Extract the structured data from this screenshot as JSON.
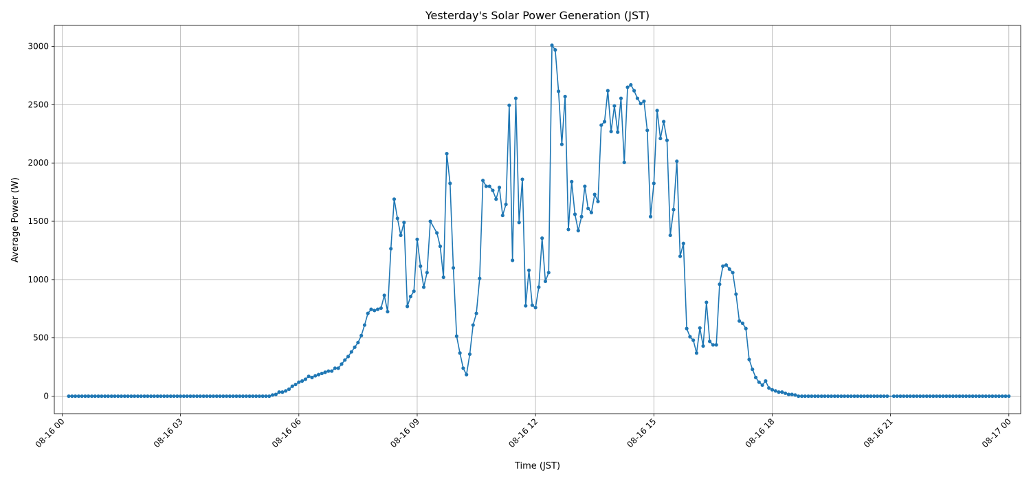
{
  "chart_data": {
    "type": "line",
    "title": "Yesterday's Solar Power Generation (JST)",
    "xlabel": "Time (JST)",
    "ylabel": "Average Power (W)",
    "xlim": [
      "2024-08-15 23:48",
      "2024-08-17 00:18"
    ],
    "ylim": [
      -150,
      3180
    ],
    "grid": true,
    "legend": "none",
    "x_ticks": [
      {
        "x": "2024-08-16 00:00",
        "label": "08-16 00"
      },
      {
        "x": "2024-08-16 03:00",
        "label": "08-16 03"
      },
      {
        "x": "2024-08-16 06:00",
        "label": "08-16 06"
      },
      {
        "x": "2024-08-16 09:00",
        "label": "08-16 09"
      },
      {
        "x": "2024-08-16 12:00",
        "label": "08-16 12"
      },
      {
        "x": "2024-08-16 15:00",
        "label": "08-16 15"
      },
      {
        "x": "2024-08-16 18:00",
        "label": "08-16 18"
      },
      {
        "x": "2024-08-16 21:00",
        "label": "08-16 21"
      },
      {
        "x": "2024-08-17 00:00",
        "label": "08-17 00"
      }
    ],
    "y_ticks": [
      0,
      500,
      1000,
      1500,
      2000,
      2500,
      3000
    ],
    "series": [
      {
        "color": "#1f77b4",
        "points": [
          [
            "00:10",
            0
          ],
          [
            "00:15",
            0
          ],
          [
            "00:20",
            0
          ],
          [
            "00:25",
            0
          ],
          [
            "00:30",
            0
          ],
          [
            "00:35",
            0
          ],
          [
            "00:40",
            0
          ],
          [
            "00:45",
            0
          ],
          [
            "00:50",
            0
          ],
          [
            "00:55",
            0
          ],
          [
            "01:00",
            0
          ],
          [
            "01:05",
            0
          ],
          [
            "01:10",
            0
          ],
          [
            "01:15",
            0
          ],
          [
            "01:20",
            0
          ],
          [
            "01:25",
            0
          ],
          [
            "01:30",
            0
          ],
          [
            "01:35",
            0
          ],
          [
            "01:40",
            0
          ],
          [
            "01:45",
            0
          ],
          [
            "01:50",
            0
          ],
          [
            "01:55",
            0
          ],
          [
            "02:00",
            0
          ],
          [
            "02:05",
            0
          ],
          [
            "02:10",
            0
          ],
          [
            "02:15",
            0
          ],
          [
            "02:20",
            0
          ],
          [
            "02:25",
            0
          ],
          [
            "02:30",
            0
          ],
          [
            "02:35",
            0
          ],
          [
            "02:40",
            0
          ],
          [
            "02:45",
            0
          ],
          [
            "02:50",
            0
          ],
          [
            "02:55",
            0
          ],
          [
            "03:00",
            0
          ],
          [
            "03:05",
            0
          ],
          [
            "03:10",
            0
          ],
          [
            "03:15",
            0
          ],
          [
            "03:20",
            0
          ],
          [
            "03:25",
            0
          ],
          [
            "03:30",
            0
          ],
          [
            "03:35",
            0
          ],
          [
            "03:40",
            0
          ],
          [
            "03:45",
            0
          ],
          [
            "03:50",
            0
          ],
          [
            "03:55",
            0
          ],
          [
            "04:00",
            0
          ],
          [
            "04:05",
            0
          ],
          [
            "04:10",
            0
          ],
          [
            "04:15",
            0
          ],
          [
            "04:20",
            0
          ],
          [
            "04:25",
            0
          ],
          [
            "04:30",
            0
          ],
          [
            "04:35",
            0
          ],
          [
            "04:40",
            0
          ],
          [
            "04:45",
            0
          ],
          [
            "04:50",
            0
          ],
          [
            "04:55",
            0
          ],
          [
            "05:00",
            0
          ],
          [
            "05:05",
            0
          ],
          [
            "05:10",
            0
          ],
          [
            "05:15",
            0
          ],
          [
            "05:20",
            10
          ],
          [
            "05:25",
            15
          ],
          [
            "05:30",
            35
          ],
          [
            "05:35",
            35
          ],
          [
            "05:40",
            45
          ],
          [
            "05:45",
            60
          ],
          [
            "05:50",
            85
          ],
          [
            "05:55",
            100
          ],
          [
            "06:00",
            120
          ],
          [
            "06:05",
            130
          ],
          [
            "06:10",
            145
          ],
          [
            "06:15",
            170
          ],
          [
            "06:20",
            160
          ],
          [
            "06:25",
            175
          ],
          [
            "06:30",
            185
          ],
          [
            "06:35",
            195
          ],
          [
            "06:40",
            205
          ],
          [
            "06:45",
            215
          ],
          [
            "06:50",
            215
          ],
          [
            "06:55",
            240
          ],
          [
            "07:00",
            240
          ],
          [
            "07:05",
            275
          ],
          [
            "07:10",
            310
          ],
          [
            "07:15",
            340
          ],
          [
            "07:20",
            380
          ],
          [
            "07:25",
            420
          ],
          [
            "07:30",
            460
          ],
          [
            "07:35",
            520
          ],
          [
            "07:40",
            610
          ],
          [
            "07:45",
            710
          ],
          [
            "07:50",
            745
          ],
          [
            "07:55",
            735
          ],
          [
            "08:00",
            745
          ],
          [
            "08:05",
            755
          ],
          [
            "08:10",
            865
          ],
          [
            "08:15",
            725
          ],
          [
            "08:20",
            1265
          ],
          [
            "08:25",
            1690
          ],
          [
            "08:30",
            1525
          ],
          [
            "08:35",
            1380
          ],
          [
            "08:40",
            1490
          ],
          [
            "08:45",
            770
          ],
          [
            "08:50",
            855
          ],
          [
            "08:55",
            900
          ],
          [
            "09:00",
            1345
          ],
          [
            "09:05",
            1115
          ],
          [
            "09:10",
            935
          ],
          [
            "09:15",
            1060
          ],
          [
            "09:20",
            1500
          ],
          [
            "09:30",
            1400
          ],
          [
            "09:35",
            1285
          ],
          [
            "09:40",
            1020
          ],
          [
            "09:45",
            2080
          ],
          [
            "09:50",
            1825
          ],
          [
            "09:55",
            1100
          ],
          [
            "10:00",
            515
          ],
          [
            "10:05",
            370
          ],
          [
            "10:10",
            240
          ],
          [
            "10:15",
            185
          ],
          [
            "10:20",
            360
          ],
          [
            "10:25",
            610
          ],
          [
            "10:30",
            710
          ],
          [
            "10:35",
            1010
          ],
          [
            "10:40",
            1850
          ],
          [
            "10:45",
            1800
          ],
          [
            "10:50",
            1800
          ],
          [
            "10:55",
            1765
          ],
          [
            "11:00",
            1690
          ],
          [
            "11:05",
            1790
          ],
          [
            "11:10",
            1550
          ],
          [
            "11:15",
            1645
          ],
          [
            "11:20",
            2495
          ],
          [
            "11:25",
            1165
          ],
          [
            "11:30",
            2555
          ],
          [
            "11:35",
            1490
          ],
          [
            "11:40",
            1860
          ],
          [
            "11:45",
            775
          ],
          [
            "11:50",
            1080
          ],
          [
            "11:55",
            780
          ],
          [
            "12:00",
            760
          ],
          [
            "12:05",
            935
          ],
          [
            "12:10",
            1355
          ],
          [
            "12:15",
            985
          ],
          [
            "12:20",
            1060
          ],
          [
            "12:25",
            3010
          ],
          [
            "12:30",
            2970
          ],
          [
            "12:35",
            2615
          ],
          [
            "12:40",
            2160
          ],
          [
            "12:45",
            2570
          ],
          [
            "12:50",
            1430
          ],
          [
            "12:55",
            1840
          ],
          [
            "13:00",
            1560
          ],
          [
            "13:05",
            1420
          ],
          [
            "13:10",
            1540
          ],
          [
            "13:15",
            1800
          ],
          [
            "13:20",
            1610
          ],
          [
            "13:25",
            1575
          ],
          [
            "13:30",
            1730
          ],
          [
            "13:35",
            1670
          ],
          [
            "13:40",
            2325
          ],
          [
            "13:45",
            2355
          ],
          [
            "13:50",
            2620
          ],
          [
            "13:55",
            2270
          ],
          [
            "14:00",
            2490
          ],
          [
            "14:05",
            2265
          ],
          [
            "14:10",
            2555
          ],
          [
            "14:15",
            2005
          ],
          [
            "14:20",
            2650
          ],
          [
            "14:25",
            2670
          ],
          [
            "14:30",
            2620
          ],
          [
            "14:35",
            2555
          ],
          [
            "14:40",
            2510
          ],
          [
            "14:45",
            2530
          ],
          [
            "14:50",
            2280
          ],
          [
            "14:55",
            1540
          ],
          [
            "15:00",
            1825
          ],
          [
            "15:05",
            2450
          ],
          [
            "15:10",
            2210
          ],
          [
            "15:15",
            2355
          ],
          [
            "15:20",
            2195
          ],
          [
            "15:25",
            1380
          ],
          [
            "15:30",
            1600
          ],
          [
            "15:35",
            2015
          ],
          [
            "15:40",
            1200
          ],
          [
            "15:45",
            1310
          ],
          [
            "15:50",
            580
          ],
          [
            "15:55",
            510
          ],
          [
            "16:00",
            480
          ],
          [
            "16:05",
            370
          ],
          [
            "16:10",
            585
          ],
          [
            "16:15",
            430
          ],
          [
            "16:20",
            805
          ],
          [
            "16:25",
            470
          ],
          [
            "16:30",
            440
          ],
          [
            "16:35",
            440
          ],
          [
            "16:40",
            960
          ],
          [
            "16:45",
            1115
          ],
          [
            "16:50",
            1125
          ],
          [
            "16:55",
            1090
          ],
          [
            "17:00",
            1060
          ],
          [
            "17:05",
            875
          ],
          [
            "17:10",
            645
          ],
          [
            "17:15",
            625
          ],
          [
            "17:20",
            580
          ],
          [
            "17:25",
            315
          ],
          [
            "17:30",
            230
          ],
          [
            "17:35",
            160
          ],
          [
            "17:40",
            120
          ],
          [
            "17:45",
            95
          ],
          [
            "17:50",
            130
          ],
          [
            "17:55",
            70
          ],
          [
            "18:00",
            55
          ],
          [
            "18:05",
            45
          ],
          [
            "18:10",
            35
          ],
          [
            "18:15",
            35
          ],
          [
            "18:20",
            25
          ],
          [
            "18:25",
            15
          ],
          [
            "18:30",
            15
          ],
          [
            "18:35",
            10
          ],
          [
            "18:40",
            0
          ],
          [
            "18:45",
            0
          ],
          [
            "18:50",
            0
          ],
          [
            "18:55",
            0
          ],
          [
            "19:00",
            0
          ],
          [
            "19:05",
            0
          ],
          [
            "19:10",
            0
          ],
          [
            "19:15",
            0
          ],
          [
            "19:20",
            0
          ],
          [
            "19:25",
            0
          ],
          [
            "19:30",
            0
          ],
          [
            "19:35",
            0
          ],
          [
            "19:40",
            0
          ],
          [
            "19:45",
            0
          ],
          [
            "19:50",
            0
          ],
          [
            "19:55",
            0
          ],
          [
            "20:00",
            0
          ],
          [
            "20:05",
            0
          ],
          [
            "20:10",
            0
          ],
          [
            "20:15",
            0
          ],
          [
            "20:20",
            0
          ],
          [
            "20:25",
            0
          ],
          [
            "20:30",
            0
          ],
          [
            "20:35",
            0
          ],
          [
            "20:40",
            0
          ],
          [
            "20:45",
            0
          ],
          [
            "20:50",
            0
          ],
          [
            "20:55",
            0
          ],
          [
            "21:05",
            0
          ],
          [
            "21:10",
            0
          ],
          [
            "21:15",
            0
          ],
          [
            "21:20",
            0
          ],
          [
            "21:25",
            0
          ],
          [
            "21:30",
            0
          ],
          [
            "21:35",
            0
          ],
          [
            "21:40",
            0
          ],
          [
            "21:45",
            0
          ],
          [
            "21:50",
            0
          ],
          [
            "21:55",
            0
          ],
          [
            "22:00",
            0
          ],
          [
            "22:05",
            0
          ],
          [
            "22:10",
            0
          ],
          [
            "22:15",
            0
          ],
          [
            "22:20",
            0
          ],
          [
            "22:25",
            0
          ],
          [
            "22:30",
            0
          ],
          [
            "22:35",
            0
          ],
          [
            "22:40",
            0
          ],
          [
            "22:45",
            0
          ],
          [
            "22:50",
            0
          ],
          [
            "22:55",
            0
          ],
          [
            "23:00",
            0
          ],
          [
            "23:05",
            0
          ],
          [
            "23:10",
            0
          ],
          [
            "23:15",
            0
          ],
          [
            "23:20",
            0
          ],
          [
            "23:25",
            0
          ],
          [
            "23:30",
            0
          ],
          [
            "23:35",
            0
          ],
          [
            "23:40",
            0
          ],
          [
            "23:45",
            0
          ],
          [
            "23:50",
            0
          ],
          [
            "23:55",
            0
          ],
          [
            "24:00",
            0
          ]
        ]
      }
    ]
  }
}
